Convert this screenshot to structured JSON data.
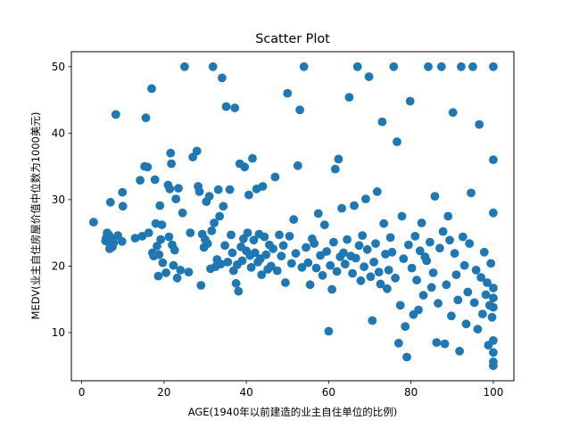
{
  "chart_data": {
    "type": "scatter",
    "title": "Scatter Plot",
    "xlabel": "AGE(1940年以前建造的业主自住单位的比例)",
    "ylabel": "MEDV(业主自住房屋价值中位数为1000美元)",
    "xlim": [
      -2.5,
      105
    ],
    "ylim": [
      2.75,
      52.25
    ],
    "xticks": [
      0,
      20,
      40,
      60,
      80,
      100
    ],
    "yticks": [
      10,
      20,
      30,
      40,
      50
    ],
    "grid": false,
    "color": "#1f77b4",
    "points": [
      [
        2.9,
        26.6
      ],
      [
        5.8,
        23.8
      ],
      [
        6.0,
        24.3
      ],
      [
        6.2,
        25.0
      ],
      [
        6.5,
        23.6
      ],
      [
        6.6,
        24.7
      ],
      [
        6.8,
        22.6
      ],
      [
        7.0,
        29.6
      ],
      [
        7.2,
        24.1
      ],
      [
        7.5,
        22.9
      ],
      [
        7.8,
        23.5
      ],
      [
        8.3,
        42.8
      ],
      [
        8.8,
        24.6
      ],
      [
        9.8,
        23.7
      ],
      [
        9.9,
        31.1
      ],
      [
        10.0,
        29.0
      ],
      [
        13.0,
        24.2
      ],
      [
        14.2,
        32.9
      ],
      [
        14.7,
        24.5
      ],
      [
        15.3,
        35.0
      ],
      [
        15.6,
        42.3
      ],
      [
        16.0,
        34.9
      ],
      [
        16.3,
        25.0
      ],
      [
        17.0,
        46.7
      ],
      [
        17.2,
        22.0
      ],
      [
        17.5,
        21.5
      ],
      [
        17.8,
        33.0
      ],
      [
        18.0,
        26.4
      ],
      [
        18.3,
        23.0
      ],
      [
        18.6,
        18.5
      ],
      [
        18.8,
        21.7
      ],
      [
        19.0,
        29.1
      ],
      [
        19.2,
        24.0
      ],
      [
        19.5,
        26.2
      ],
      [
        19.7,
        20.5
      ],
      [
        20.5,
        19.0
      ],
      [
        21.0,
        32.2
      ],
      [
        21.2,
        24.4
      ],
      [
        21.4,
        31.6
      ],
      [
        21.6,
        37.0
      ],
      [
        21.8,
        35.4
      ],
      [
        22.0,
        23.2
      ],
      [
        22.3,
        20.1
      ],
      [
        22.6,
        22.4
      ],
      [
        22.9,
        30.1
      ],
      [
        23.2,
        18.2
      ],
      [
        23.5,
        31.7
      ],
      [
        24.0,
        19.4
      ],
      [
        24.5,
        28.0
      ],
      [
        25.0,
        50.0
      ],
      [
        26.0,
        19.1
      ],
      [
        26.4,
        25.0
      ],
      [
        27.0,
        36.4
      ],
      [
        28.0,
        37.3
      ],
      [
        28.3,
        32.0
      ],
      [
        28.6,
        31.2
      ],
      [
        29.0,
        17.1
      ],
      [
        29.3,
        24.8
      ],
      [
        29.7,
        22.8
      ],
      [
        30.0,
        24.0
      ],
      [
        30.3,
        29.7
      ],
      [
        30.6,
        23.4
      ],
      [
        31.0,
        30.5
      ],
      [
        31.3,
        19.6
      ],
      [
        31.6,
        25.3
      ],
      [
        31.9,
        50.0
      ],
      [
        32.2,
        26.5
      ],
      [
        32.5,
        19.9
      ],
      [
        32.9,
        21.0
      ],
      [
        33.2,
        31.5
      ],
      [
        33.5,
        27.5
      ],
      [
        33.8,
        20.3
      ],
      [
        34.1,
        48.3
      ],
      [
        34.4,
        29.0
      ],
      [
        34.8,
        23.1
      ],
      [
        35.1,
        44.0
      ],
      [
        35.5,
        20.6
      ],
      [
        36.0,
        31.5
      ],
      [
        36.3,
        24.7
      ],
      [
        36.6,
        22.0
      ],
      [
        36.9,
        19.3
      ],
      [
        37.2,
        43.8
      ],
      [
        37.5,
        17.4
      ],
      [
        37.8,
        20.2
      ],
      [
        38.1,
        16.2
      ],
      [
        38.4,
        35.4
      ],
      [
        38.7,
        22.9
      ],
      [
        39.0,
        20.8
      ],
      [
        39.3,
        24.1
      ],
      [
        39.6,
        34.9
      ],
      [
        40.0,
        22.3
      ],
      [
        40.3,
        25.0
      ],
      [
        40.6,
        30.7
      ],
      [
        40.9,
        21.6
      ],
      [
        41.2,
        19.8
      ],
      [
        41.5,
        36.2
      ],
      [
        41.8,
        23.9
      ],
      [
        42.1,
        22.0
      ],
      [
        42.5,
        31.6
      ],
      [
        42.8,
        20.6
      ],
      [
        43.1,
        24.8
      ],
      [
        43.4,
        21.1
      ],
      [
        43.7,
        18.7
      ],
      [
        44.0,
        32.0
      ],
      [
        44.4,
        24.4
      ],
      [
        44.8,
        21.7
      ],
      [
        45.2,
        19.5
      ],
      [
        45.6,
        23.2
      ],
      [
        46.0,
        20.0
      ],
      [
        46.5,
        22.6
      ],
      [
        47.0,
        33.4
      ],
      [
        47.5,
        19.3
      ],
      [
        48.0,
        24.7
      ],
      [
        48.5,
        21.5
      ],
      [
        49.0,
        23.1
      ],
      [
        49.5,
        17.5
      ],
      [
        50.0,
        46.0
      ],
      [
        50.5,
        24.5
      ],
      [
        51.0,
        20.4
      ],
      [
        51.5,
        27.0
      ],
      [
        52.0,
        21.9
      ],
      [
        52.5,
        35.1
      ],
      [
        53.0,
        43.5
      ],
      [
        53.5,
        19.8
      ],
      [
        54.0,
        50.0
      ],
      [
        54.5,
        22.8
      ],
      [
        55.0,
        20.5
      ],
      [
        55.5,
        17.2
      ],
      [
        56.0,
        24.1
      ],
      [
        56.5,
        23.4
      ],
      [
        57.0,
        19.7
      ],
      [
        57.5,
        27.9
      ],
      [
        58.0,
        21.6
      ],
      [
        58.5,
        18.6
      ],
      [
        59.0,
        26.2
      ],
      [
        59.5,
        22.2
      ],
      [
        60.0,
        10.2
      ],
      [
        60.4,
        20.1
      ],
      [
        60.8,
        16.5
      ],
      [
        61.2,
        23.6
      ],
      [
        61.6,
        34.6
      ],
      [
        62.0,
        19.2
      ],
      [
        62.4,
        36.1
      ],
      [
        62.8,
        21.4
      ],
      [
        63.2,
        28.7
      ],
      [
        63.6,
        22.0
      ],
      [
        64.0,
        20.3
      ],
      [
        64.5,
        24.0
      ],
      [
        65.0,
        45.4
      ],
      [
        65.4,
        21.5
      ],
      [
        65.8,
        18.9
      ],
      [
        66.2,
        29.1
      ],
      [
        66.6,
        21.2
      ],
      [
        67.0,
        50.0
      ],
      [
        67.4,
        23.1
      ],
      [
        67.8,
        17.8
      ],
      [
        68.2,
        24.6
      ],
      [
        68.6,
        19.9
      ],
      [
        69.0,
        30.1
      ],
      [
        69.4,
        22.5
      ],
      [
        69.8,
        48.5
      ],
      [
        70.2,
        18.4
      ],
      [
        70.6,
        11.8
      ],
      [
        71.0,
        20.6
      ],
      [
        71.4,
        23.4
      ],
      [
        71.8,
        31.2
      ],
      [
        72.2,
        19.1
      ],
      [
        72.6,
        17.3
      ],
      [
        73.0,
        41.7
      ],
      [
        73.4,
        26.4
      ],
      [
        73.8,
        21.8
      ],
      [
        74.2,
        16.6
      ],
      [
        74.6,
        19.4
      ],
      [
        75.0,
        24.3
      ],
      [
        75.4,
        22.1
      ],
      [
        75.8,
        50.0
      ],
      [
        76.2,
        18.2
      ],
      [
        76.6,
        38.7
      ],
      [
        77.0,
        8.4
      ],
      [
        77.4,
        14.1
      ],
      [
        77.8,
        27.5
      ],
      [
        78.2,
        21.1
      ],
      [
        78.6,
        10.9
      ],
      [
        79.0,
        6.3
      ],
      [
        79.4,
        23.2
      ],
      [
        79.8,
        44.8
      ],
      [
        80.2,
        19.7
      ],
      [
        80.6,
        12.7
      ],
      [
        81.0,
        24.5
      ],
      [
        81.4,
        17.9
      ],
      [
        81.8,
        13.4
      ],
      [
        82.2,
        22.3
      ],
      [
        82.6,
        26.5
      ],
      [
        83.0,
        15.6
      ],
      [
        83.4,
        21.4
      ],
      [
        83.8,
        20.8
      ],
      [
        84.2,
        50.0
      ],
      [
        84.6,
        23.6
      ],
      [
        85.0,
        16.8
      ],
      [
        85.4,
        19.0
      ],
      [
        85.8,
        30.5
      ],
      [
        86.2,
        8.5
      ],
      [
        86.6,
        14.4
      ],
      [
        87.0,
        22.7
      ],
      [
        87.4,
        50.0
      ],
      [
        87.8,
        25.2
      ],
      [
        88.2,
        8.3
      ],
      [
        88.6,
        17.2
      ],
      [
        89.0,
        27.5
      ],
      [
        89.4,
        23.9
      ],
      [
        89.8,
        12.5
      ],
      [
        90.2,
        43.1
      ],
      [
        90.6,
        21.9
      ],
      [
        91.0,
        18.7
      ],
      [
        91.4,
        14.9
      ],
      [
        91.8,
        7.2
      ],
      [
        92.2,
        50.0
      ],
      [
        92.6,
        24.4
      ],
      [
        93.0,
        20.1
      ],
      [
        93.4,
        11.3
      ],
      [
        93.8,
        16.1
      ],
      [
        94.2,
        23.4
      ],
      [
        94.6,
        31.0
      ],
      [
        95.0,
        50.0
      ],
      [
        95.4,
        14.5
      ],
      [
        95.8,
        19.4
      ],
      [
        96.2,
        10.5
      ],
      [
        96.6,
        41.3
      ],
      [
        97.0,
        18.3
      ],
      [
        97.4,
        12.8
      ],
      [
        97.8,
        22.1
      ],
      [
        98.2,
        15.7
      ],
      [
        98.5,
        17.5
      ],
      [
        98.8,
        8.1
      ],
      [
        99.1,
        14.1
      ],
      [
        99.4,
        20.4
      ],
      [
        99.7,
        12.3
      ],
      [
        100.0,
        50.0
      ],
      [
        100.0,
        36.0
      ],
      [
        100.0,
        28.0
      ],
      [
        100.0,
        5.0
      ],
      [
        100.0,
        5.6
      ],
      [
        100.0,
        7.0
      ],
      [
        100.0,
        8.8
      ],
      [
        100.0,
        13.8
      ],
      [
        100.0,
        15.2
      ],
      [
        100.0,
        16.7
      ]
    ]
  }
}
